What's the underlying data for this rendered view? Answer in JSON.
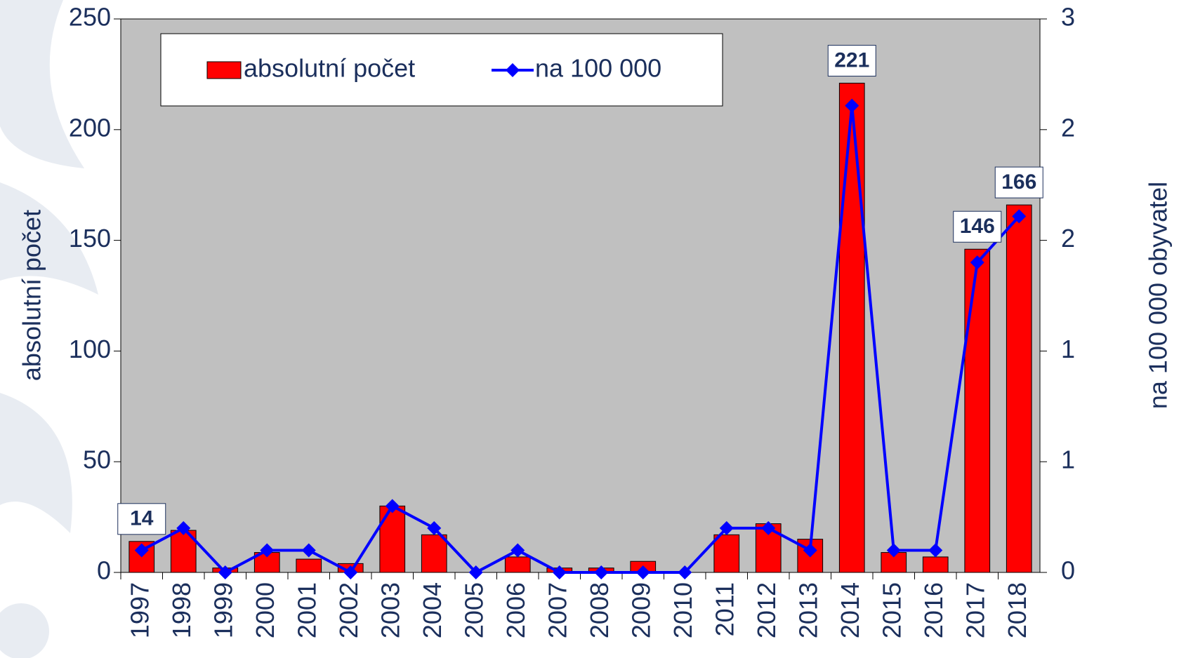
{
  "chart_data": {
    "type": "bar",
    "y_label": "absolutní počet",
    "y2_label": "na 100 000 obyvatel",
    "categories": [
      "1997",
      "1998",
      "1999",
      "2000",
      "2001",
      "2002",
      "2003",
      "2004",
      "2005",
      "2006",
      "2007",
      "2008",
      "2009",
      "2010",
      "2011",
      "2012",
      "2013",
      "2014",
      "2015",
      "2016",
      "2017",
      "2018"
    ],
    "series": [
      {
        "name": "absolutní počet",
        "type": "bar",
        "color": "#ff0000",
        "values": [
          14,
          19,
          2,
          9,
          6,
          4,
          30,
          17,
          0,
          7,
          2,
          2,
          5,
          0,
          17,
          22,
          15,
          221,
          9,
          7,
          146,
          166
        ],
        "value_labels": [
          "14",
          null,
          null,
          null,
          null,
          null,
          null,
          null,
          null,
          null,
          null,
          null,
          null,
          null,
          null,
          null,
          null,
          "221",
          null,
          null,
          "146",
          "166"
        ]
      },
      {
        "name": "na 100 000",
        "type": "line",
        "axis": "y2",
        "color": "#0000ff",
        "values": [
          0.12,
          0.24,
          0,
          0.12,
          0.12,
          0,
          0.36,
          0.24,
          0,
          0.12,
          0,
          0,
          0,
          0,
          0.24,
          0.24,
          0.12,
          2.53,
          0.12,
          0.12,
          1.68,
          1.93
        ]
      }
    ],
    "ylim": [
      0,
      250
    ],
    "yticks": [
      0,
      50,
      100,
      150,
      200,
      250
    ],
    "y2lim": [
      0,
      3
    ],
    "y2ticks": [
      0,
      {
        "value": 0.6,
        "label": "1"
      },
      {
        "value": 1.2,
        "label": "1"
      },
      {
        "value": 1.8,
        "label": "2"
      },
      {
        "value": 2.4,
        "label": "2"
      },
      3
    ],
    "plot_background": "#c0c0c0"
  }
}
